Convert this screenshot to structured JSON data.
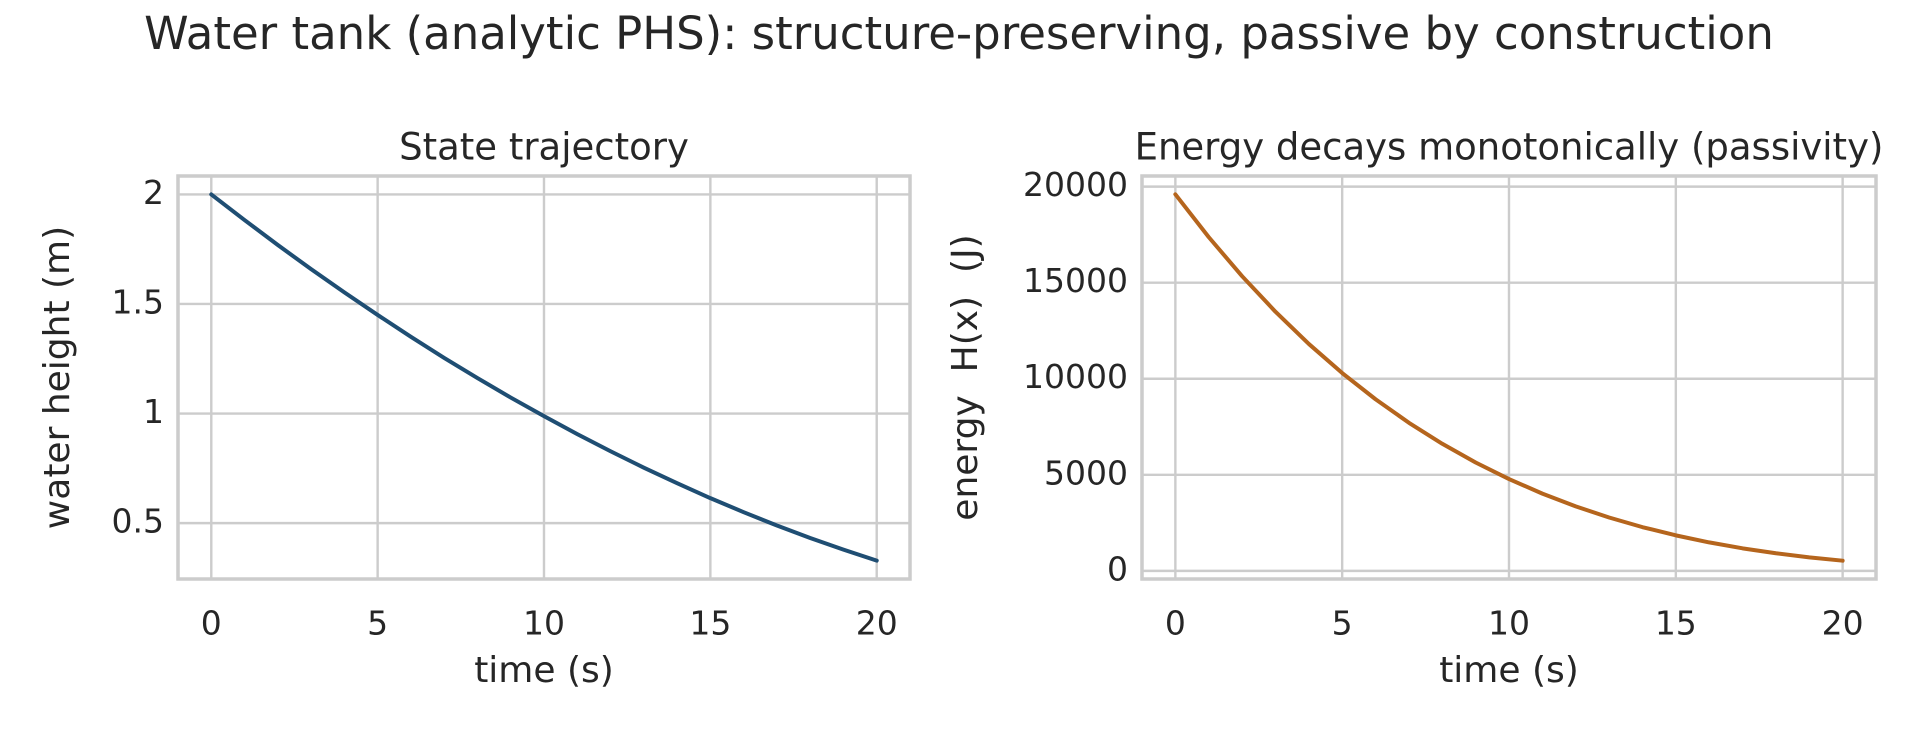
{
  "title": "Water tank (analytic PHS): structure-preserving, passive by construction",
  "chart_data": [
    {
      "type": "line",
      "title": "State trajectory",
      "xlabel": "time (s)",
      "ylabel": "water height (m)",
      "x": [
        0,
        1,
        2,
        3,
        4,
        5,
        6,
        7,
        8,
        9,
        10,
        11,
        12,
        13,
        14,
        15,
        16,
        17,
        18,
        19,
        20
      ],
      "series": [
        {
          "name": "water height",
          "color": "#1f4e73",
          "values": [
            2.0,
            1.883,
            1.769,
            1.659,
            1.553,
            1.45,
            1.35,
            1.254,
            1.162,
            1.073,
            0.988,
            0.906,
            0.828,
            0.753,
            0.682,
            0.614,
            0.55,
            0.489,
            0.432,
            0.379,
            0.329
          ]
        }
      ],
      "xlim": [
        -1,
        21
      ],
      "xticks": [
        0,
        5,
        10,
        15,
        20
      ],
      "ylim": [
        0.245,
        2.084
      ],
      "yticks": [
        0.5,
        1.0,
        1.5,
        2.0
      ],
      "grid": true
    },
    {
      "type": "line",
      "title": "Energy decays monotonically (passivity)",
      "xlabel": "time (s)",
      "ylabel": "energy  H(x)  (J)",
      "x": [
        0,
        1,
        2,
        3,
        4,
        5,
        6,
        7,
        8,
        9,
        10,
        11,
        12,
        13,
        14,
        15,
        16,
        17,
        18,
        19,
        20
      ],
      "series": [
        {
          "name": "energy",
          "color": "#b5651d",
          "values": [
            19600,
            17371,
            15338,
            13489,
            11812,
            10297,
            8933,
            7708,
            6615,
            5641,
            4780,
            4021,
            3356,
            2778,
            2277,
            1848,
            1482,
            1173,
            916,
            703,
            530
          ]
        }
      ],
      "xlim": [
        -1,
        21
      ],
      "xticks": [
        0,
        5,
        10,
        15,
        20
      ],
      "ylim": [
        -423,
        20553
      ],
      "yticks": [
        0,
        5000,
        10000,
        15000,
        20000
      ],
      "grid": true
    }
  ]
}
